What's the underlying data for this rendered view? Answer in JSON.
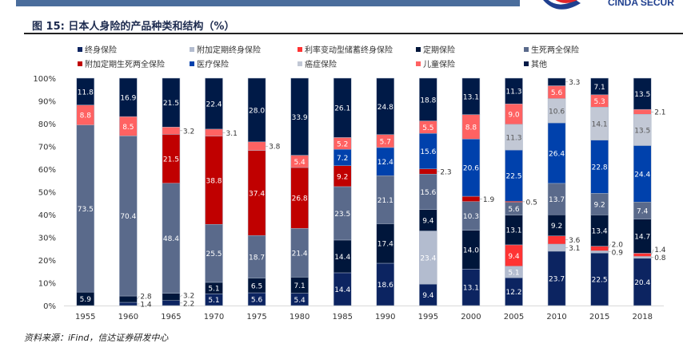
{
  "header": {
    "logo_text": "CINDA SECUR"
  },
  "title": "图 15: 日本人身险的产品种类和结构（%）",
  "source": "资料来源：iFind，信达证券研发中心",
  "chart_data": {
    "type": "bar",
    "stacked": true,
    "title": "",
    "xlabel": "",
    "ylabel": "",
    "ylim": [
      0,
      100
    ],
    "yticks": [
      "0%",
      "10%",
      "20%",
      "30%",
      "40%",
      "50%",
      "60%",
      "70%",
      "80%",
      "90%",
      "100%"
    ],
    "categories": [
      "1955",
      "1960",
      "1965",
      "1970",
      "1975",
      "1980",
      "1985",
      "1990",
      "1995",
      "2000",
      "2005",
      "2010",
      "2015",
      "2018"
    ],
    "legend_position": "top",
    "series": [
      {
        "name": "终身保险",
        "color": "#0c2461",
        "label_color": "#ffffff",
        "values": [
          0,
          1.4,
          2.2,
          5.1,
          5.6,
          5.4,
          14.4,
          18.6,
          9.4,
          13.1,
          12.2,
          23.7,
          22.5,
          20.4
        ]
      },
      {
        "name": "附加定期终身保险",
        "color": "#b3bccf",
        "label_color": "#ffffff",
        "values": [
          0,
          0,
          0,
          0,
          0,
          0,
          0,
          0,
          23.4,
          0,
          5.1,
          3.1,
          0.9,
          0.8
        ]
      },
      {
        "name": "利率变动型储蓄终身保险",
        "color": "#ff3333",
        "label_color": "#ffffff",
        "values": [
          0,
          0,
          0,
          0,
          0,
          0,
          0,
          0,
          0,
          0,
          9.4,
          3.6,
          2.0,
          1.4
        ]
      },
      {
        "name": "定期保险",
        "color": "#00163b",
        "label_color": "#ffffff",
        "values": [
          5.9,
          2.8,
          3.2,
          5.1,
          6.5,
          7.1,
          14.4,
          17.4,
          9.4,
          14.0,
          13.1,
          9.2,
          13.4,
          14.7
        ]
      },
      {
        "name": "生死两全保险",
        "color": "#5a6a8b",
        "label_color": "#ffffff",
        "values": [
          73.5,
          70.4,
          48.4,
          25.5,
          18.7,
          21.4,
          23.5,
          21.1,
          15.6,
          10.3,
          5.6,
          13.7,
          9.2,
          7.4
        ]
      },
      {
        "name": "附加定期生死两全保险",
        "color": "#c00000",
        "label_color": "#ffffff",
        "values": [
          0,
          0,
          21.5,
          38.8,
          37.4,
          26.8,
          9.2,
          0,
          2.3,
          1.9,
          0.5,
          0,
          0,
          0
        ]
      },
      {
        "name": "医疗保险",
        "color": "#0041ac",
        "label_color": "#ffffff",
        "values": [
          0,
          0,
          0,
          0,
          0,
          0,
          7.2,
          12.4,
          15.6,
          20.6,
          22.5,
          26.4,
          22.8,
          24.4
        ]
      },
      {
        "name": "癌症保险",
        "color": "#c2c8d5",
        "label_color": "#555555",
        "values": [
          0,
          0,
          0,
          0,
          0,
          0,
          0,
          0,
          0,
          0,
          11.3,
          10.6,
          14.1,
          13.5
        ]
      },
      {
        "name": "儿童保险",
        "color": "#ff6262",
        "label_color": "#ffffff",
        "values": [
          8.8,
          8.5,
          3.2,
          3.1,
          3.8,
          5.4,
          5.2,
          5.7,
          5.5,
          8.8,
          9.0,
          5.6,
          5.3,
          2.1
        ]
      },
      {
        "name": "其他",
        "color": "#001a47",
        "label_color": "#ffffff",
        "values": [
          11.8,
          16.9,
          21.5,
          22.4,
          28.0,
          33.9,
          26.1,
          24.8,
          18.8,
          13.1,
          11.3,
          3.3,
          7.1,
          13.5
        ]
      }
    ]
  }
}
